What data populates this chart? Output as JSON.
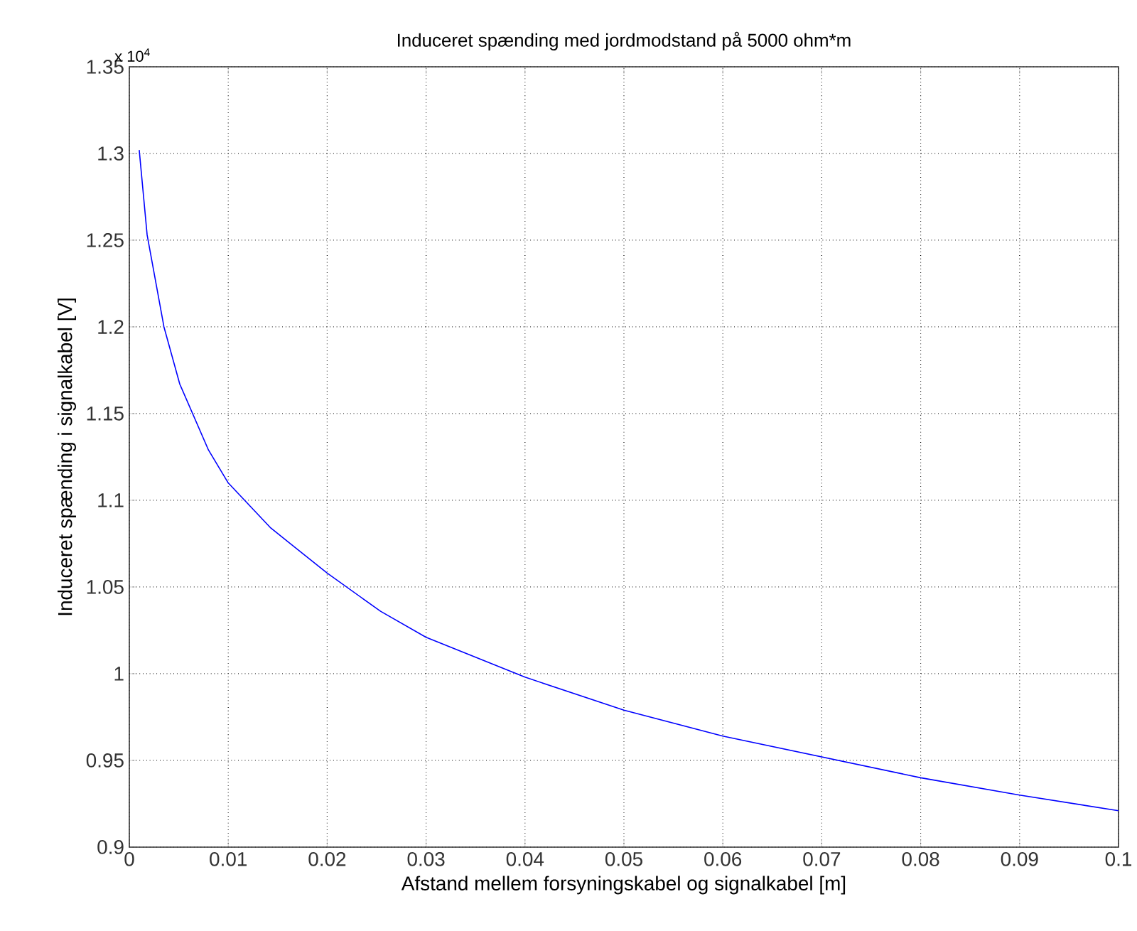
{
  "chart_data": {
    "type": "line",
    "title": "Induceret spænding med jordmodstand på 5000 ohm*m",
    "xlabel": "Afstand mellem forsyningskabel og signalkabel [m]",
    "ylabel": "Induceret spænding i signalkabel [V]",
    "annotations": [
      "x 10$^{4}$"
    ],
    "series": [
      {
        "color": "#0000ff",
        "x": [
          0.001,
          0.0018,
          0.0035,
          0.0051,
          0.008,
          0.01,
          0.0143,
          0.02,
          0.0254,
          0.03,
          0.04,
          0.05,
          0.06,
          0.07,
          0.08,
          0.09,
          0.1
        ],
        "values": [
          1.302,
          1.253,
          1.2,
          1.167,
          1.129,
          1.11,
          1.084,
          1.058,
          1.036,
          1.021,
          0.998,
          0.979,
          0.964,
          0.952,
          0.94,
          0.93,
          0.921
        ]
      }
    ],
    "xlim": [
      0,
      0.1
    ],
    "ylim": [
      0.9,
      1.35
    ],
    "xticks": [
      0,
      0.01,
      0.02,
      0.03,
      0.04,
      0.05,
      0.06,
      0.07,
      0.08,
      0.09,
      0.1
    ],
    "yticks": [
      0.9,
      0.95,
      1,
      1.05,
      1.1,
      1.15,
      1.2,
      1.25,
      1.3,
      1.35
    ],
    "grid": true,
    "line_style": "solid",
    "marker": "none"
  }
}
